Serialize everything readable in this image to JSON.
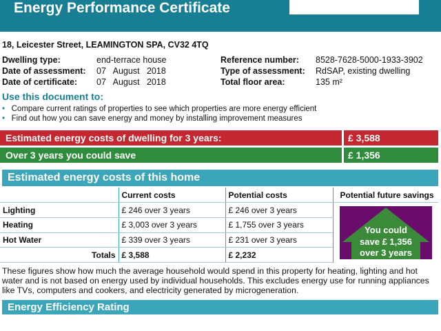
{
  "header": {
    "title": "Energy Performance Certificate"
  },
  "address": "18, Leicester Street, LEAMINGTON SPA, CV32 4TQ",
  "info": {
    "dwelling_type_label": "Dwelling type:",
    "dwelling_type": "end-terrace house",
    "date_assessment_label": "Date of assessment:",
    "date_assessment": "07   August   2018",
    "date_certificate_label": "Date of certificate:",
    "date_certificate": "07   August   2018",
    "reference_label": "Reference number:",
    "reference": "8528-7628-5000-1933-3902",
    "type_label": "Type of assessment:",
    "type": "RdSAP, existing dwelling",
    "area_label": "Total floor area:",
    "area": "135 m²"
  },
  "use": {
    "heading": "Use this document to:",
    "bullets": [
      "Compare current ratings of properties to see which properties are more energy efficient",
      "Find out how you can save energy and money by installing improvement measures"
    ]
  },
  "cost_bar": {
    "label": "Estimated energy costs of dwelling for 3 years:",
    "value": "£ 3,588",
    "color": "#c4272f"
  },
  "save_bar": {
    "label": "Over 3 years you could save",
    "value": "£ 1,356",
    "color": "#2f8c3c"
  },
  "costs": {
    "heading": "Estimated energy costs of this home",
    "columns": [
      "",
      "Current costs",
      "Potential costs",
      "Potential future savings"
    ],
    "rows": [
      {
        "label": "Lighting",
        "current": "£ 246 over 3 years",
        "potential": "£ 246 over 3 years"
      },
      {
        "label": "Heating",
        "current": "£ 3,003 over 3 years",
        "potential": "£ 1,755 over 3 years"
      },
      {
        "label": "Hot Water",
        "current": "£ 339 over 3 years",
        "potential": "£ 231 over 3 years"
      }
    ],
    "totals": {
      "label": "Totals",
      "current": "£ 3,588",
      "potential": "£ 2,232"
    },
    "savings": {
      "line1": "You could",
      "line2": "save £ 1,356",
      "line3": "over 3 years"
    }
  },
  "note": "These figures show how much the average household would spend in this property for heating, lighting and hot water and is not based on energy used by individual households. This excludes energy use for running appliances like TVs, computers and cookers, and electricity generated by microgeneration.",
  "rating": {
    "heading": "Energy Efficiency Rating"
  }
}
